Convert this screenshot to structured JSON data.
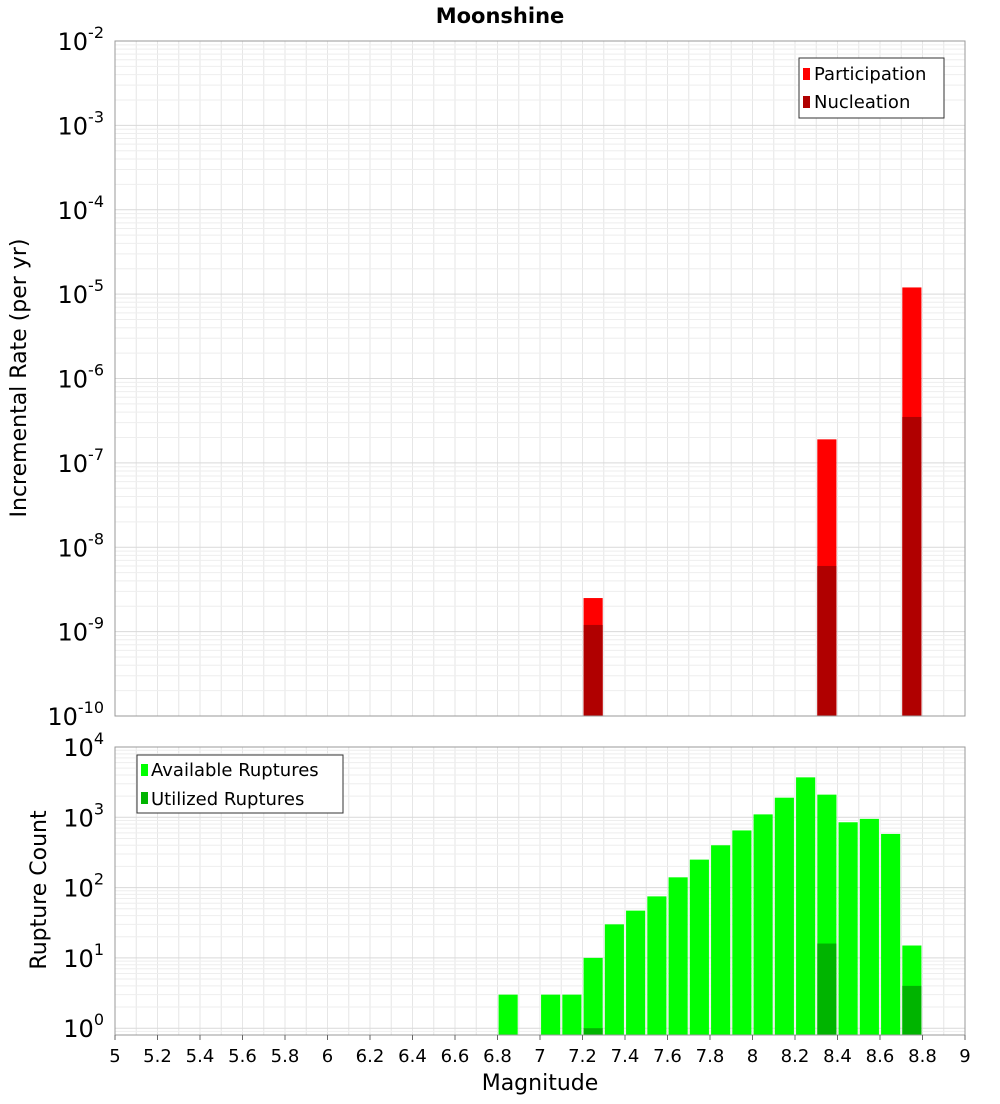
{
  "chart_data": [
    {
      "type": "bar",
      "title": "Moonshine",
      "ylabel": "Incremental Rate (per yr)",
      "xlabel": "",
      "yscale": "log",
      "ylim": [
        1e-10,
        0.01
      ],
      "xlim": [
        5,
        9
      ],
      "grid": true,
      "legend_position": "top-right",
      "y_tick_exponents": [
        "-10",
        "-9",
        "-8",
        "-7",
        "-6",
        "-5",
        "-4",
        "-3",
        "-2"
      ],
      "series": [
        {
          "name": "Participation",
          "color": "#ff0000",
          "points": [
            {
              "x": 7.25,
              "y": 2.5e-09
            },
            {
              "x": 8.35,
              "y": 1.9e-07
            },
            {
              "x": 8.75,
              "y": 1.2e-05
            }
          ]
        },
        {
          "name": "Nucleation",
          "color": "#b00000",
          "points": [
            {
              "x": 7.25,
              "y": 1.2e-09
            },
            {
              "x": 8.35,
              "y": 6e-09
            },
            {
              "x": 8.75,
              "y": 3.5e-07
            }
          ]
        }
      ]
    },
    {
      "type": "bar",
      "title": "",
      "ylabel": "Rupture Count",
      "xlabel": "Magnitude",
      "yscale": "log",
      "ylim": [
        0.8,
        10000
      ],
      "xlim": [
        5,
        9
      ],
      "grid": true,
      "legend_position": "top-left",
      "y_tick_exponents": [
        "0",
        "1",
        "2",
        "3",
        "4"
      ],
      "x_ticks": [
        "5",
        "5.2",
        "5.4",
        "5.6",
        "5.8",
        "6",
        "6.2",
        "6.4",
        "6.6",
        "6.8",
        "7",
        "7.2",
        "7.4",
        "7.6",
        "7.8",
        "8",
        "8.2",
        "8.4",
        "8.6",
        "8.8",
        "9"
      ],
      "series": [
        {
          "name": "Available Ruptures",
          "color": "#00ff00",
          "points": [
            {
              "x": 6.85,
              "y": 3
            },
            {
              "x": 7.05,
              "y": 3
            },
            {
              "x": 7.15,
              "y": 3
            },
            {
              "x": 7.25,
              "y": 10
            },
            {
              "x": 7.35,
              "y": 30
            },
            {
              "x": 7.45,
              "y": 47
            },
            {
              "x": 7.55,
              "y": 75
            },
            {
              "x": 7.65,
              "y": 140
            },
            {
              "x": 7.75,
              "y": 250
            },
            {
              "x": 7.85,
              "y": 400
            },
            {
              "x": 7.95,
              "y": 650
            },
            {
              "x": 8.05,
              "y": 1100
            },
            {
              "x": 8.15,
              "y": 1900
            },
            {
              "x": 8.25,
              "y": 3700
            },
            {
              "x": 8.35,
              "y": 2100
            },
            {
              "x": 8.45,
              "y": 850
            },
            {
              "x": 8.55,
              "y": 950
            },
            {
              "x": 8.65,
              "y": 580
            },
            {
              "x": 8.75,
              "y": 15
            }
          ]
        },
        {
          "name": "Utilized Ruptures",
          "color": "#00b400",
          "points": [
            {
              "x": 7.25,
              "y": 1
            },
            {
              "x": 8.35,
              "y": 16
            },
            {
              "x": 8.75,
              "y": 4
            }
          ]
        }
      ]
    }
  ]
}
